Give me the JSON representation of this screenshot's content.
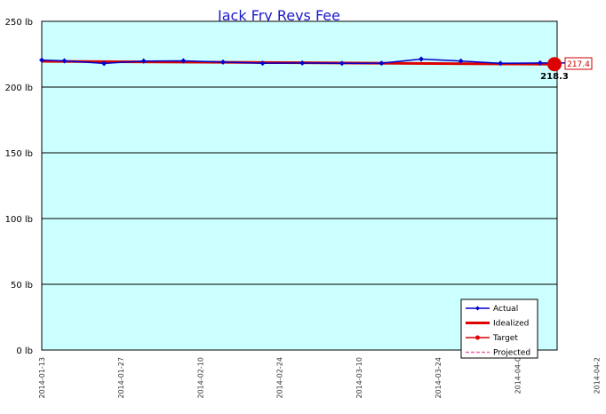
{
  "chart_data": {
    "type": "line",
    "title": "Jack Fry Revs Fee",
    "xlabel": "",
    "ylabel": "",
    "y_unit": "lb",
    "ylim": [
      0,
      250
    ],
    "y_ticks": [
      "0 lb",
      "50 lb",
      "100 lb",
      "150 lb",
      "200 lb",
      "250 lb"
    ],
    "x_range": [
      "2014-01-13",
      "2014-04-14"
    ],
    "x_ticks": [
      "2014-01-13",
      "2014-01-27",
      "2014-02-10",
      "2014-02-24",
      "2014-03-10",
      "2014-03-24",
      "2014-04-0",
      "2014-04-2"
    ],
    "grid": true,
    "legend_position": "bottom-right",
    "series": [
      {
        "name": "Actual",
        "color": "#0000cc",
        "x": [
          "2014-01-13",
          "2014-01-17",
          "2014-01-24",
          "2014-01-31",
          "2014-02-07",
          "2014-02-14",
          "2014-02-21",
          "2014-02-28",
          "2014-03-07",
          "2014-03-14",
          "2014-03-21",
          "2014-03-28",
          "2014-04-04",
          "2014-04-11",
          "2014-04-18"
        ],
        "y": [
          220.5,
          219.9,
          218.0,
          219.8,
          219.9,
          219.0,
          218.2,
          218.3,
          218.1,
          218.2,
          221.3,
          219.8,
          218.1,
          218.3,
          218.3
        ]
      },
      {
        "name": "Idealized",
        "color": "#dd0000",
        "x": [
          "2014-01-13",
          "2014-04-14"
        ],
        "y": [
          219.6,
          217.4
        ]
      },
      {
        "name": "Target",
        "color": "#dd0000",
        "x": [
          "2014-04-14"
        ],
        "y": [
          217.4
        ]
      },
      {
        "name": "Projected",
        "color": "#ee66aa",
        "x": [],
        "y": []
      }
    ],
    "annotations": {
      "end_value": "218.3",
      "target_value": "217.4"
    },
    "colors": {
      "plot_background": "#ccffff",
      "gridline": "#000000",
      "actual": "#0000cc",
      "idealized": "#dd0000",
      "target": "#dd0000",
      "projected": "#ee66aa"
    }
  }
}
